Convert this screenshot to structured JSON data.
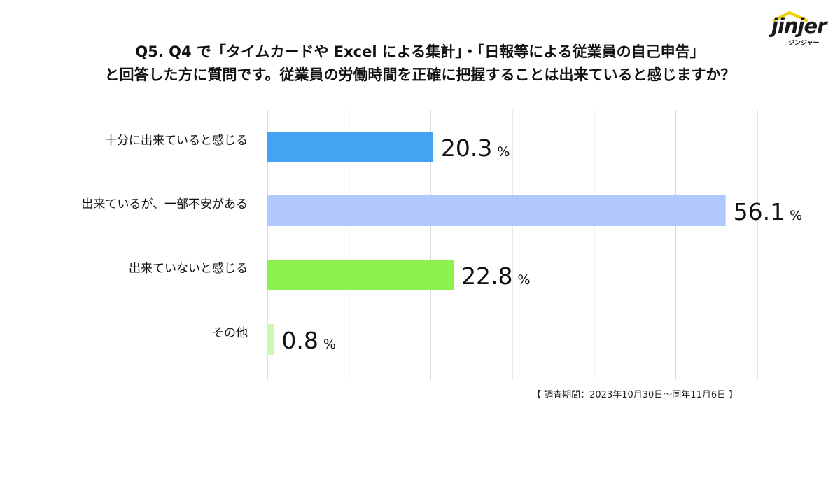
{
  "title_lines": [
    "Q5. Q4 で「タイムカードや Excel による集計」・「日報等による従業員の自己申告」",
    "と回答した方に質問です。従業員の労働時間を正確に把握することは出来ていると感じますか？"
  ],
  "logo": {
    "word": "jinjer",
    "sub": "ジンジャー"
  },
  "period_note": "【 調査期間：2023年10月30日～同年11月6日 】",
  "chart_data": {
    "type": "bar",
    "orientation": "horizontal",
    "categories": [
      "十分に出来ていると感じる",
      "出来ているが、一部不安がある",
      "出来ていないと感じる",
      "その他"
    ],
    "values": [
      20.3,
      56.1,
      22.8,
      0.8
    ],
    "value_labels": [
      "20.3",
      "56.1",
      "22.8",
      "0.8"
    ],
    "unit": "%",
    "xlim": [
      0,
      60
    ],
    "grid": true,
    "colors": [
      "#44a4f3",
      "#b0c8fb",
      "#8cf04e",
      "#cdf5b5"
    ]
  }
}
